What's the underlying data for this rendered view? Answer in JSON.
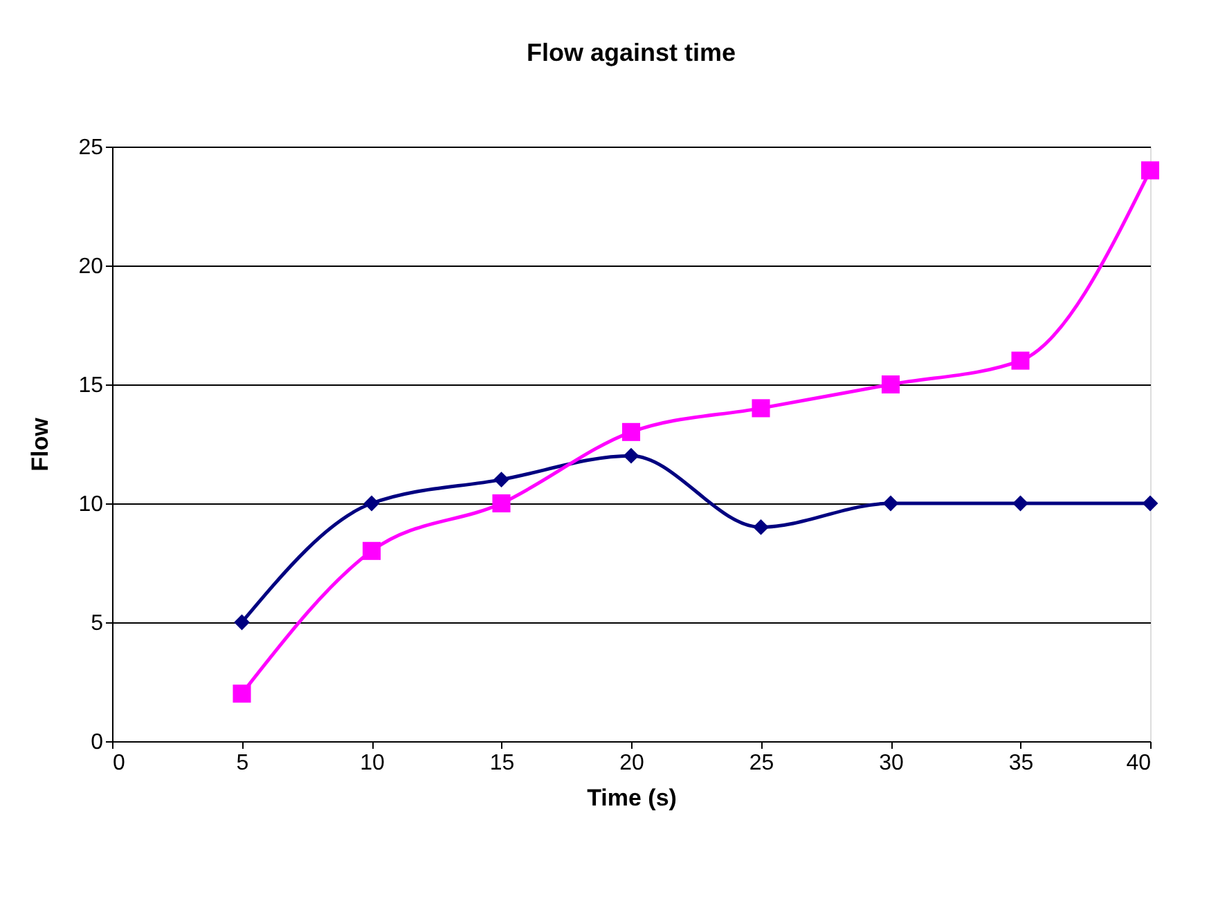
{
  "chart_data": {
    "type": "line",
    "title": "Flow against time",
    "xlabel": "Time (s)",
    "ylabel": "Flow",
    "x": [
      5,
      10,
      15,
      20,
      25,
      30,
      35,
      40
    ],
    "series": [
      {
        "color": "#000080",
        "marker": "diamond",
        "values": [
          5,
          10,
          11,
          12,
          9,
          10,
          10,
          10
        ]
      },
      {
        "color": "#ff00ff",
        "marker": "square",
        "values": [
          2,
          8,
          10,
          13,
          14,
          15,
          16,
          24
        ]
      }
    ],
    "xlim": [
      0,
      40
    ],
    "xticks": [
      0,
      5,
      10,
      15,
      20,
      25,
      30,
      35,
      40
    ],
    "ylim": [
      0,
      25
    ],
    "yticks": [
      0,
      5,
      10,
      15,
      20,
      25
    ],
    "grid": "y",
    "line_style": "solid"
  }
}
